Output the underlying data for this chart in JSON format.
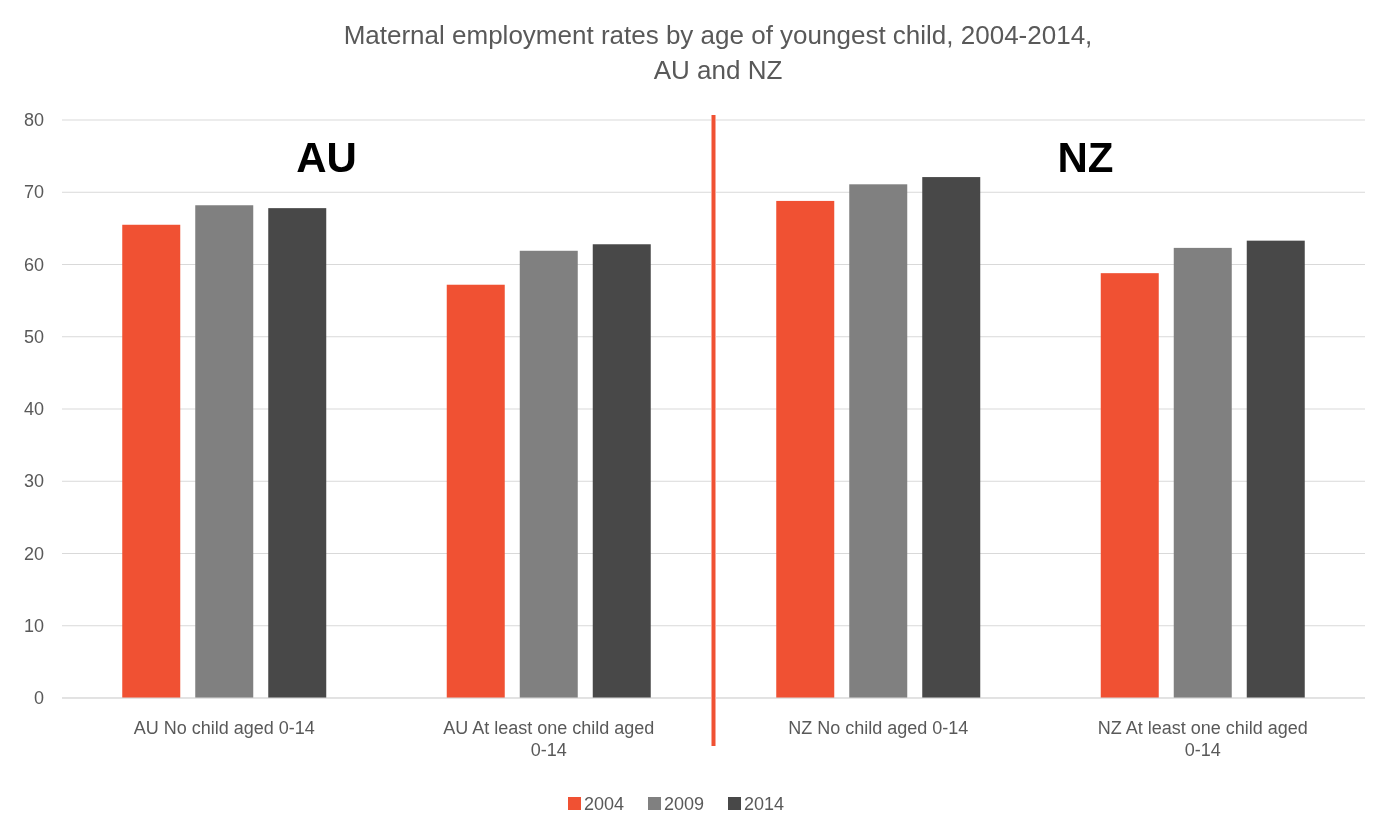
{
  "chart_data": [
    {
      "type": "bar",
      "title": "Maternal employment rates by age of youngest child, 2004-2014, AU and NZ",
      "categories": [
        "AU No child aged 0-14",
        "AU At least one child aged 0-14"
      ],
      "series": [
        {
          "name": "2004",
          "color": "#f05133",
          "values": [
            65.5,
            57.2
          ]
        },
        {
          "name": "2009",
          "color": "#808080",
          "values": [
            68.2,
            61.9
          ]
        },
        {
          "name": "2014",
          "color": "#484848",
          "values": [
            67.8,
            62.8
          ]
        }
      ],
      "ylim": [
        0,
        80
      ],
      "yticks": [
        0,
        10,
        20,
        30,
        40,
        50,
        60,
        70,
        80
      ],
      "grid": "y",
      "legend": "bottom",
      "annotations": [
        "AU"
      ]
    },
    {
      "type": "bar",
      "categories": [
        "NZ No child aged 0-14",
        "NZ At least one child aged 0-14"
      ],
      "series": [
        {
          "color": "#f05133",
          "values": [
            68.8,
            58.8
          ]
        },
        {
          "color": "#808080",
          "values": [
            71.1,
            62.3
          ]
        },
        {
          "color": "#484848",
          "values": [
            72.1,
            63.3
          ]
        }
      ],
      "ylim": [
        0,
        80
      ],
      "yticks": [
        0,
        10,
        20,
        30,
        40,
        50,
        60,
        70,
        80
      ],
      "grid": "y",
      "tick_labels": "x",
      "annotations": [
        "NZ"
      ]
    }
  ]
}
